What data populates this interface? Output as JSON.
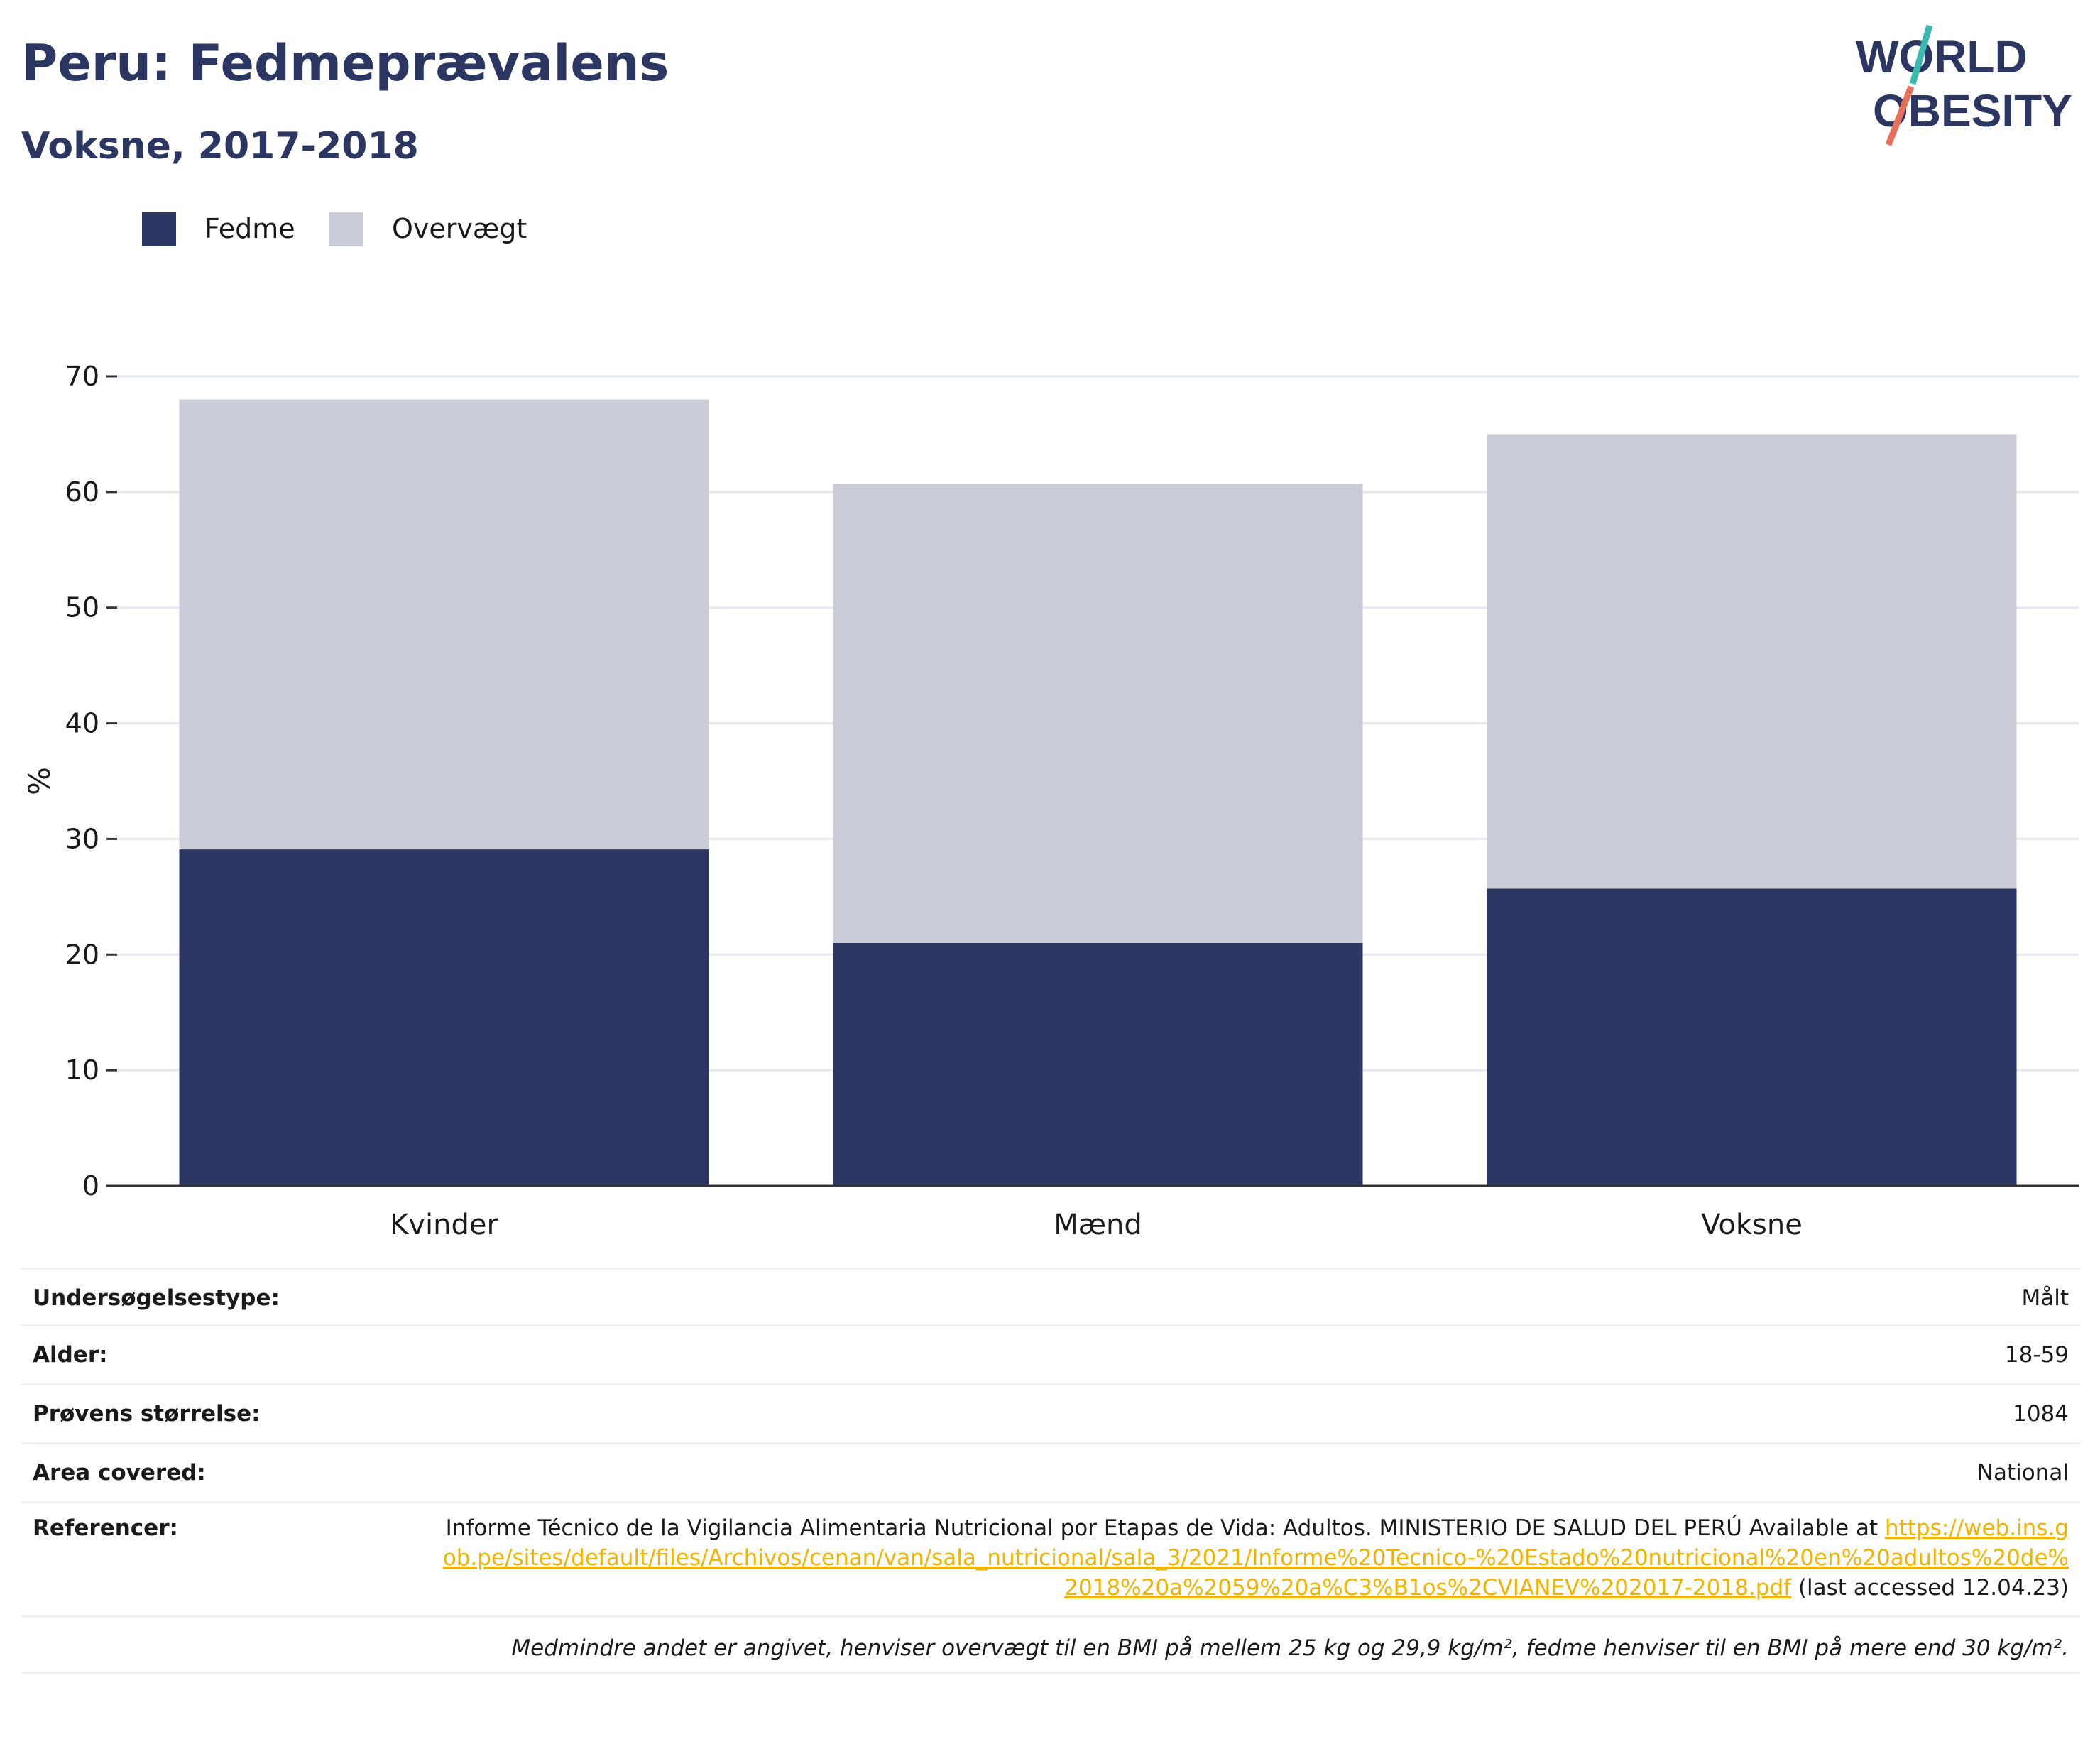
{
  "header": {
    "title": "Peru: Fedmeprævalens",
    "subtitle": "Voksne, 2017-2018"
  },
  "logo": {
    "line1": "WORLD",
    "line2": "OBESITY"
  },
  "colors": {
    "fedme": "#2b3663",
    "overvaegt": "#cacdd8",
    "title": "#2b3663",
    "link": "#f0b400",
    "logo_teal": "#3bb8b0",
    "logo_coral": "#e8705a"
  },
  "chart_data": {
    "type": "bar",
    "stacked": true,
    "categories": [
      "Kvinder",
      "Mænd",
      "Voksne"
    ],
    "series": [
      {
        "name": "Fedme",
        "values": [
          29.1,
          21.0,
          25.7
        ]
      },
      {
        "name": "Overvægt",
        "values": [
          38.9,
          39.7,
          39.3
        ]
      }
    ],
    "ylabel": "%",
    "ylim": [
      0,
      70
    ],
    "yticks": [
      "0",
      "10",
      "20",
      "30",
      "40",
      "50",
      "60",
      "70"
    ],
    "grid": true,
    "legend_position": "top-left"
  },
  "info": {
    "survey_type_label": "Undersøgelsestype:",
    "survey_type_value": "Målt",
    "age_label": "Alder:",
    "age_value": "18-59",
    "sample_label": "Prøvens størrelse:",
    "sample_value": "1084",
    "area_label": "Area covered:",
    "area_value": "National",
    "ref_label": "Referencer:",
    "ref_text": "Informe Técnico de la Vigilancia Alimentaria Nutricional por Etapas de Vida: Adultos. MINISTERIO DE SALUD DEL PERÚ Available at ",
    "ref_url": "https://web.ins.gob.pe/sites/default/files/Archivos/cenan/van/sala_nutricional/sala_3/2021/Informe%20Tecnico-%20Estado%20nutricional%20en%20adultos%20de%2018%20a%2059%20a%C3%B1os%2CVIANEV%202017-2018.pdf",
    "ref_suffix": " (last accessed 12.04.23)",
    "note": "Medmindre andet er angivet, henviser overvægt til en BMI på mellem 25 kg og 29,9 kg/m², fedme henviser til en BMI på mere end 30 kg/m²."
  }
}
